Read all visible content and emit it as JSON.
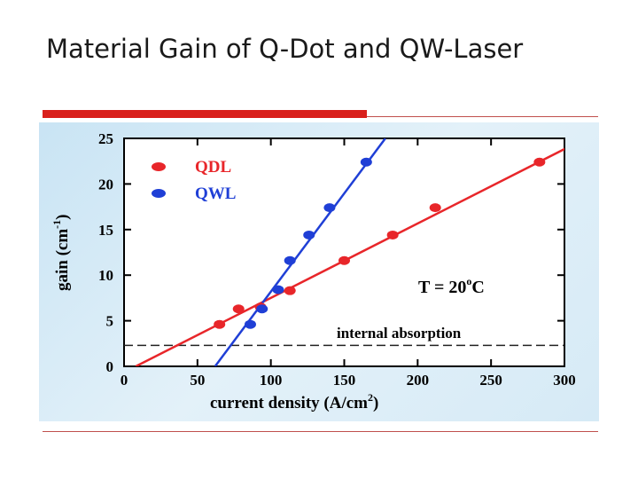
{
  "slide": {
    "title": "Material Gain of Q-Dot and QW-Laser"
  },
  "chart_data": {
    "type": "scatter",
    "xlabel": "current density (A/cm",
    "xlabel_sup": "2",
    "xlabel_tail": ")",
    "ylabel": "gain (cm",
    "ylabel_sup": "-1",
    "ylabel_tail": ")",
    "xlim": [
      0,
      300
    ],
    "ylim": [
      0,
      25
    ],
    "xticks": [
      0,
      50,
      100,
      150,
      200,
      250,
      300
    ],
    "yticks": [
      0,
      5,
      10,
      15,
      20,
      25
    ],
    "series": [
      {
        "name": "QDL",
        "color": "#e8262a",
        "points": [
          [
            65,
            4.6
          ],
          [
            78,
            6.3
          ],
          [
            93,
            6.5
          ],
          [
            113,
            8.3
          ],
          [
            150,
            11.6
          ],
          [
            183,
            14.4
          ],
          [
            212,
            17.4
          ],
          [
            283,
            22.4
          ]
        ],
        "fit_line": [
          [
            8,
            0
          ],
          [
            307,
            24.4
          ]
        ]
      },
      {
        "name": "QWL",
        "color": "#1f3fd6",
        "points": [
          [
            86,
            4.6
          ],
          [
            94,
            6.3
          ],
          [
            105,
            8.4
          ],
          [
            113,
            11.6
          ],
          [
            126,
            14.4
          ],
          [
            140,
            17.4
          ],
          [
            165,
            22.4
          ]
        ],
        "fit_line": [
          [
            62,
            0
          ],
          [
            178,
            25
          ]
        ]
      }
    ],
    "reference_line": {
      "label": "internal absorption",
      "y": 2.3
    },
    "annotation": {
      "text": "T = 20",
      "sup": "o",
      "tail": "C"
    }
  }
}
